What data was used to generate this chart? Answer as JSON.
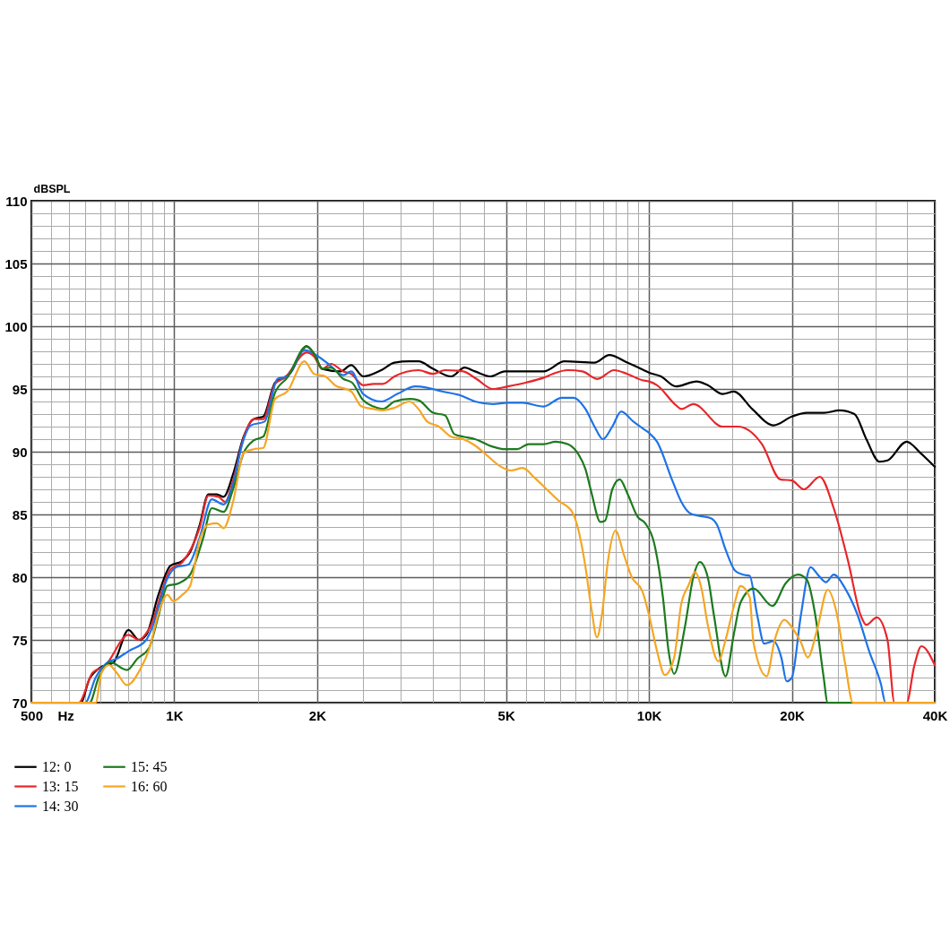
{
  "chart_data": {
    "type": "line",
    "xlabel": "Hz",
    "ylabel": "dBSPL",
    "log": "x",
    "grid": true,
    "legend": "bottom left",
    "xlim": [
      500,
      40000
    ],
    "ylim": [
      70,
      110
    ],
    "xticks": [
      500,
      {
        "value": 550,
        "label": null
      },
      {
        "value": 600,
        "label": null
      },
      {
        "value": 650,
        "label": null
      },
      {
        "value": 700,
        "label": null
      },
      {
        "value": 750,
        "label": null
      },
      {
        "value": 800,
        "label": null
      },
      {
        "value": 850,
        "label": null
      },
      {
        "value": 900,
        "label": null
      },
      {
        "value": 950,
        "label": null
      },
      {
        "value": 1000,
        "label": "1K"
      },
      {
        "value": 1500,
        "label": null
      },
      {
        "value": 2000,
        "label": "2K"
      },
      {
        "value": 2500,
        "label": null
      },
      {
        "value": 3000,
        "label": null
      },
      {
        "value": 3500,
        "label": null
      },
      {
        "value": 4000,
        "label": null
      },
      {
        "value": 4500,
        "label": null
      },
      {
        "value": 5000,
        "label": "5K"
      },
      {
        "value": 5500,
        "label": null
      },
      {
        "value": 6000,
        "label": null
      },
      {
        "value": 6500,
        "label": null
      },
      {
        "value": 7000,
        "label": null
      },
      {
        "value": 7500,
        "label": null
      },
      {
        "value": 8000,
        "label": null
      },
      {
        "value": 8500,
        "label": null
      },
      {
        "value": 9000,
        "label": null
      },
      {
        "value": 9500,
        "label": null
      },
      {
        "value": 10000,
        "label": "10K"
      },
      {
        "value": 15000,
        "label": null
      },
      {
        "value": 20000,
        "label": "20K"
      },
      {
        "value": 25000,
        "label": null
      },
      {
        "value": 30000,
        "label": null
      },
      {
        "value": 35000,
        "label": null
      },
      {
        "value": 40000,
        "label": "40K"
      }
    ],
    "yticks": [
      70,
      {
        "value": 71,
        "label": null
      },
      {
        "value": 72,
        "label": null
      },
      {
        "value": 73,
        "label": null
      },
      {
        "value": 74,
        "label": null
      },
      75,
      {
        "value": 76,
        "label": null
      },
      {
        "value": 77,
        "label": null
      },
      {
        "value": 78,
        "label": null
      },
      {
        "value": 79,
        "label": null
      },
      80,
      {
        "value": 81,
        "label": null
      },
      {
        "value": 82,
        "label": null
      },
      {
        "value": 83,
        "label": null
      },
      {
        "value": 84,
        "label": null
      },
      85,
      {
        "value": 86,
        "label": null
      },
      {
        "value": 87,
        "label": null
      },
      {
        "value": 88,
        "label": null
      },
      {
        "value": 89,
        "label": null
      },
      90,
      {
        "value": 91,
        "label": null
      },
      {
        "value": 92,
        "label": null
      },
      {
        "value": 93,
        "label": null
      },
      {
        "value": 94,
        "label": null
      },
      95,
      {
        "value": 96,
        "label": null
      },
      {
        "value": 97,
        "label": null
      },
      {
        "value": 98,
        "label": null
      },
      {
        "value": 99,
        "label": null
      },
      100,
      {
        "value": 101,
        "label": null
      },
      {
        "value": 102,
        "label": null
      },
      {
        "value": 103,
        "label": null
      },
      {
        "value": 104,
        "label": null
      },
      105,
      {
        "value": 106,
        "label": null
      },
      {
        "value": 107,
        "label": null
      },
      {
        "value": 108,
        "label": null
      },
      {
        "value": 109,
        "label": null
      },
      110
    ],
    "series": [
      {
        "name": "12: 0",
        "color": "#000000",
        "x": [
          500,
          635,
          663,
          698,
          745,
          801,
          842,
          873,
          926,
          981,
          1040,
          1080,
          1130,
          1180,
          1230,
          1270,
          1330,
          1400,
          1470,
          1540,
          1630,
          1700,
          1750,
          1900,
          1970,
          2050,
          2240,
          2360,
          2500,
          2730,
          2910,
          3130,
          3270,
          3510,
          3830,
          4090,
          4300,
          4630,
          4970,
          5420,
          6000,
          6640,
          7680,
          8250,
          9000,
          9750,
          10000,
          10600,
          11400,
          12600,
          13300,
          14300,
          15100,
          16500,
          18300,
          20000,
          21500,
          23400,
          25200,
          27100,
          28700,
          30600,
          31800,
          34900,
          37300,
          40000
        ],
        "values": [
          70,
          70,
          71.9,
          72.8,
          73.2,
          75.8,
          75.0,
          75.4,
          78.6,
          80.9,
          81.3,
          82.0,
          84.1,
          86.6,
          86.6,
          86.4,
          88.2,
          91.2,
          92.6,
          92.8,
          95.5,
          95.9,
          96.2,
          98.4,
          97.8,
          96.6,
          96.4,
          96.9,
          96.0,
          96.5,
          97.1,
          97.2,
          97.2,
          96.6,
          96.0,
          96.7,
          96.4,
          96.0,
          96.4,
          96.4,
          96.4,
          97.2,
          97.1,
          97.7,
          97.1,
          96.5,
          96.3,
          96.0,
          95.2,
          95.6,
          95.3,
          94.6,
          94.8,
          93.4,
          92.1,
          92.8,
          93.1,
          93.1,
          93.3,
          93.0,
          91.0,
          89.2,
          89.3,
          90.8,
          89.9,
          88.8
        ]
      },
      {
        "name": "13: 15",
        "color": "#e8262a",
        "x": [
          500,
          629,
          673,
          713,
          801,
          842,
          886,
          981,
          1040,
          1130,
          1180,
          1240,
          1280,
          1330,
          1400,
          1470,
          1540,
          1630,
          1710,
          1900,
          1970,
          2050,
          2140,
          2270,
          2360,
          2500,
          2630,
          2750,
          2910,
          3270,
          3510,
          3720,
          4060,
          4330,
          4690,
          5040,
          5500,
          6000,
          6270,
          6740,
          7240,
          7790,
          8440,
          9000,
          9680,
          10000,
          10400,
          11400,
          11700,
          12400,
          14300,
          15400,
          17300,
          18900,
          20000,
          21200,
          22900,
          24500,
          26300,
          27900,
          28700,
          30200,
          31800,
          32900,
          34900,
          36200,
          37500,
          40000
        ],
        "values": [
          70,
          70,
          72.4,
          72.9,
          75.4,
          75.0,
          75.9,
          80.6,
          81.2,
          83.9,
          86.5,
          86.4,
          86.0,
          87.7,
          91.1,
          92.6,
          92.6,
          95.4,
          95.9,
          97.9,
          97.6,
          96.6,
          97.0,
          96.4,
          96.2,
          95.3,
          95.4,
          95.4,
          96.0,
          96.5,
          96.2,
          96.5,
          96.4,
          95.8,
          95.0,
          95.2,
          95.5,
          95.9,
          96.2,
          96.5,
          96.4,
          95.8,
          96.5,
          96.2,
          95.7,
          95.6,
          95.3,
          93.7,
          93.4,
          93.8,
          92.0,
          92.0,
          90.6,
          87.8,
          87.7,
          87.0,
          88.0,
          85.5,
          81.2,
          77.0,
          76.2,
          76.8,
          75.0,
          70,
          70,
          72.9,
          74.5,
          73.0
        ]
      },
      {
        "name": "14: 30",
        "color": "#1e73e8",
        "x": [
          500,
          649,
          683,
          723,
          756,
          801,
          873,
          899,
          967,
          1010,
          1070,
          1130,
          1200,
          1270,
          1330,
          1390,
          1450,
          1550,
          1650,
          1730,
          1880,
          1970,
          2110,
          2270,
          2360,
          2500,
          2730,
          2950,
          3220,
          3410,
          3670,
          4000,
          4300,
          4690,
          5040,
          5420,
          6000,
          6550,
          6940,
          7350,
          7680,
          8000,
          8370,
          8740,
          9270,
          9750,
          10000,
          10400,
          11200,
          11700,
          12200,
          12700,
          13500,
          13900,
          14500,
          15200,
          15800,
          16300,
          16900,
          17500,
          18300,
          19000,
          19500,
          20000,
          20900,
          21900,
          22800,
          23600,
          24500,
          25900,
          27500,
          29100,
          30800,
          31500,
          40000
        ],
        "values": [
          70,
          70,
          72.0,
          73.2,
          73.5,
          74.1,
          75.0,
          76.0,
          79.9,
          80.8,
          81.0,
          83.1,
          86.2,
          85.8,
          87.4,
          90.6,
          92.1,
          92.4,
          95.8,
          96.0,
          98.1,
          97.8,
          97.0,
          96.1,
          96.4,
          94.6,
          94.0,
          94.6,
          95.2,
          95.1,
          94.8,
          94.5,
          94.0,
          93.8,
          93.9,
          93.9,
          93.6,
          94.3,
          94.3,
          93.4,
          92.0,
          91.0,
          92.0,
          93.2,
          92.4,
          91.8,
          91.5,
          90.8,
          87.7,
          86.0,
          85.1,
          84.9,
          84.7,
          84.2,
          82.2,
          80.5,
          80.2,
          80.1,
          77.0,
          74.7,
          74.9,
          73.6,
          71.7,
          72.0,
          77.0,
          80.8,
          80.1,
          79.6,
          80.2,
          79.1,
          77.0,
          74.1,
          71.5,
          70,
          70
        ]
      },
      {
        "name": "15: 45",
        "color": "#1d7a1d",
        "x": [
          500,
          663,
          693,
          734,
          795,
          836,
          886,
          926,
          967,
          1020,
          1080,
          1150,
          1200,
          1270,
          1330,
          1400,
          1470,
          1540,
          1630,
          1730,
          1900,
          1970,
          2050,
          2140,
          2270,
          2370,
          2500,
          2630,
          2750,
          2910,
          3130,
          3270,
          3510,
          3720,
          3890,
          4060,
          4300,
          4690,
          4970,
          5270,
          5580,
          6000,
          6360,
          6740,
          7040,
          7350,
          7570,
          7900,
          8080,
          8370,
          8680,
          9000,
          9470,
          9820,
          10300,
          10700,
          11000,
          11300,
          11900,
          12400,
          12800,
          13300,
          13700,
          14500,
          15100,
          15600,
          16600,
          18200,
          19400,
          20600,
          21500,
          22400,
          23300,
          23800,
          40000
        ],
        "values": [
          70,
          70,
          72.0,
          73.2,
          72.6,
          73.5,
          74.4,
          76.9,
          79.3,
          79.5,
          80.2,
          83.1,
          85.5,
          85.2,
          87.0,
          89.9,
          90.9,
          91.2,
          94.7,
          95.9,
          98.4,
          97.8,
          96.6,
          96.7,
          95.8,
          95.5,
          94.1,
          93.6,
          93.4,
          94.0,
          94.2,
          94.1,
          93.1,
          92.9,
          91.4,
          91.2,
          91.0,
          90.4,
          90.2,
          90.2,
          90.6,
          90.6,
          90.8,
          90.6,
          90.0,
          88.6,
          86.7,
          84.4,
          84.5,
          87.0,
          87.8,
          86.7,
          84.8,
          84.3,
          82.4,
          78.4,
          74.1,
          72.3,
          76.0,
          80.0,
          81.2,
          80.0,
          77.0,
          72.1,
          75.5,
          78.0,
          79.1,
          77.7,
          79.5,
          80.2,
          79.8,
          77.0,
          72.2,
          70,
          70
        ]
      },
      {
        "name": "16: 60",
        "color": "#f5a623",
        "x": [
          500,
          683,
          703,
          729,
          756,
          795,
          849,
          886,
          926,
          967,
          995,
          1040,
          1080,
          1130,
          1180,
          1230,
          1270,
          1330,
          1400,
          1470,
          1540,
          1630,
          1730,
          1880,
          1970,
          2080,
          2180,
          2360,
          2480,
          2630,
          2750,
          2910,
          3130,
          3270,
          3410,
          3610,
          3830,
          4060,
          4300,
          4560,
          4830,
          5120,
          5420,
          5750,
          6090,
          6450,
          6890,
          7140,
          7350,
          7570,
          7770,
          7960,
          8190,
          8500,
          8870,
          9200,
          9680,
          10000,
          10400,
          10800,
          11300,
          11700,
          12100,
          12500,
          12900,
          13300,
          14000,
          14500,
          15100,
          15600,
          16300,
          16600,
          17700,
          18400,
          19300,
          20000,
          20900,
          21600,
          22600,
          23800,
          24800,
          25900,
          26900,
          40000
        ],
        "values": [
          70,
          70,
          72.4,
          73.0,
          72.4,
          71.4,
          72.7,
          74.3,
          77.1,
          78.6,
          78.1,
          78.6,
          79.3,
          82.9,
          84.2,
          84.3,
          83.9,
          86.0,
          89.9,
          90.2,
          90.3,
          94.2,
          94.8,
          97.2,
          96.2,
          96.0,
          95.3,
          94.8,
          93.6,
          93.4,
          93.3,
          93.5,
          94.0,
          93.4,
          92.4,
          92.0,
          91.2,
          91.0,
          90.5,
          89.7,
          88.9,
          88.5,
          88.7,
          87.9,
          87.0,
          86.1,
          85.2,
          83.4,
          80.8,
          77.4,
          75.2,
          77.0,
          81.2,
          83.7,
          81.7,
          80.0,
          78.9,
          77.0,
          74.1,
          72.2,
          73.6,
          77.9,
          79.3,
          80.4,
          79.1,
          76.2,
          73.3,
          75.0,
          77.7,
          79.3,
          78.4,
          74.8,
          72.1,
          75.0,
          76.6,
          76.0,
          74.8,
          73.6,
          75.8,
          79.0,
          77.3,
          73.1,
          70,
          70
        ]
      }
    ]
  }
}
